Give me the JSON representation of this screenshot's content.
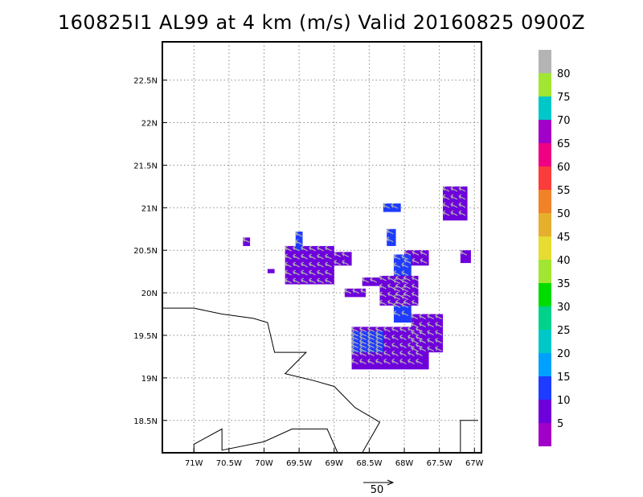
{
  "chart_data": {
    "type": "heatmap",
    "title": "160825I1 AL99 at 4 km (m/s) Valid 20160825 0900Z",
    "xlabel": "",
    "ylabel": "",
    "xlim": [
      -71.45,
      -66.9
    ],
    "ylim": [
      18.12,
      22.95
    ],
    "x_ticks": [
      {
        "value": -71.0,
        "label": "71W"
      },
      {
        "value": -70.5,
        "label": "70.5W"
      },
      {
        "value": -70.0,
        "label": "70W"
      },
      {
        "value": -69.5,
        "label": "69.5W"
      },
      {
        "value": -69.0,
        "label": "69W"
      },
      {
        "value": -68.5,
        "label": "68.5W"
      },
      {
        "value": -68.0,
        "label": "68W"
      },
      {
        "value": -67.5,
        "label": "67.5W"
      },
      {
        "value": -67.0,
        "label": "67W"
      }
    ],
    "y_ticks": [
      {
        "value": 18.5,
        "label": "18.5N"
      },
      {
        "value": 19.0,
        "label": "19N"
      },
      {
        "value": 19.5,
        "label": "19.5N"
      },
      {
        "value": 20.0,
        "label": "20N"
      },
      {
        "value": 20.5,
        "label": "20.5N"
      },
      {
        "value": 21.0,
        "label": "21N"
      },
      {
        "value": 21.5,
        "label": "21.5N"
      },
      {
        "value": 22.0,
        "label": "22N"
      },
      {
        "value": 22.5,
        "label": "22.5N"
      }
    ],
    "grid": true,
    "colorbar": {
      "labels": [
        "5",
        "10",
        "15",
        "20",
        "25",
        "30",
        "35",
        "40",
        "45",
        "50",
        "55",
        "60",
        "65",
        "70",
        "75",
        "80"
      ],
      "colors": [
        "#a000c8",
        "#6e00dc",
        "#1e3cff",
        "#00a0ff",
        "#00c8c8",
        "#00d28c",
        "#00dc00",
        "#a0e632",
        "#e6dc32",
        "#e6af2d",
        "#f08228",
        "#fa3c3c",
        "#f00082",
        "#a000c8",
        "#00c8c8",
        "#a0e632",
        "#b4b4b4"
      ]
    },
    "wind_regions": [
      {
        "lon": [
          -67.45,
          -67.1
        ],
        "lat": [
          20.85,
          21.25
        ],
        "speed": 7
      },
      {
        "lon": [
          -67.2,
          -67.05
        ],
        "lat": [
          20.35,
          20.5
        ],
        "speed": 6
      },
      {
        "lon": [
          -68.3,
          -68.05
        ],
        "lat": [
          20.95,
          21.05
        ],
        "speed": 10
      },
      {
        "lon": [
          -68.25,
          -68.12
        ],
        "lat": [
          20.55,
          20.75
        ],
        "speed": 10
      },
      {
        "lon": [
          -68.0,
          -67.65
        ],
        "lat": [
          20.32,
          20.5
        ],
        "speed": 7
      },
      {
        "lon": [
          -68.15,
          -67.9
        ],
        "lat": [
          19.65,
          20.45
        ],
        "speed": 10
      },
      {
        "lon": [
          -68.35,
          -67.8
        ],
        "lat": [
          19.85,
          20.2
        ],
        "speed": 9
      },
      {
        "lon": [
          -68.6,
          -68.35
        ],
        "lat": [
          20.08,
          20.18
        ],
        "speed": 6
      },
      {
        "lon": [
          -68.85,
          -68.55
        ],
        "lat": [
          19.95,
          20.05
        ],
        "speed": 6
      },
      {
        "lon": [
          -67.9,
          -67.45
        ],
        "lat": [
          19.3,
          19.75
        ],
        "speed": 6
      },
      {
        "lon": [
          -68.75,
          -67.65
        ],
        "lat": [
          19.1,
          19.6
        ],
        "speed": 7
      },
      {
        "lon": [
          -68.75,
          -68.3
        ],
        "lat": [
          19.3,
          19.55
        ],
        "speed": 10
      },
      {
        "lon": [
          -69.7,
          -69.0
        ],
        "lat": [
          20.1,
          20.55
        ],
        "speed": 7
      },
      {
        "lon": [
          -69.0,
          -68.75
        ],
        "lat": [
          20.32,
          20.48
        ],
        "speed": 6
      },
      {
        "lon": [
          -69.55,
          -69.45
        ],
        "lat": [
          20.5,
          20.72
        ],
        "speed": 10
      },
      {
        "lon": [
          -70.3,
          -70.2
        ],
        "lat": [
          20.55,
          20.65
        ],
        "speed": 7
      },
      {
        "lon": [
          -69.95,
          -69.85
        ],
        "lat": [
          20.23,
          20.28
        ],
        "speed": 6
      }
    ],
    "coastline": [
      {
        "points": [
          [
            -71.45,
            19.82
          ],
          [
            -71.0,
            19.82
          ],
          [
            -70.6,
            19.75
          ],
          [
            -70.15,
            19.7
          ],
          [
            -69.95,
            19.65
          ],
          [
            -69.85,
            19.3
          ],
          [
            -69.4,
            19.3
          ],
          [
            -69.7,
            19.05
          ],
          [
            -69.3,
            18.97
          ],
          [
            -69.0,
            18.9
          ],
          [
            -68.7,
            18.65
          ],
          [
            -68.35,
            18.48
          ],
          [
            -68.6,
            18.12
          ]
        ]
      },
      {
        "points": [
          [
            -71.0,
            18.12
          ],
          [
            -71.0,
            18.22
          ],
          [
            -70.6,
            18.4
          ],
          [
            -70.6,
            18.15
          ],
          [
            -70.0,
            18.25
          ],
          [
            -69.6,
            18.4
          ],
          [
            -69.1,
            18.4
          ],
          [
            -68.95,
            18.12
          ]
        ]
      },
      {
        "points": [
          [
            -67.2,
            18.12
          ],
          [
            -67.2,
            18.5
          ],
          [
            -66.95,
            18.5
          ]
        ]
      }
    ],
    "reference_vector": {
      "label": "50",
      "speed": 50
    }
  }
}
